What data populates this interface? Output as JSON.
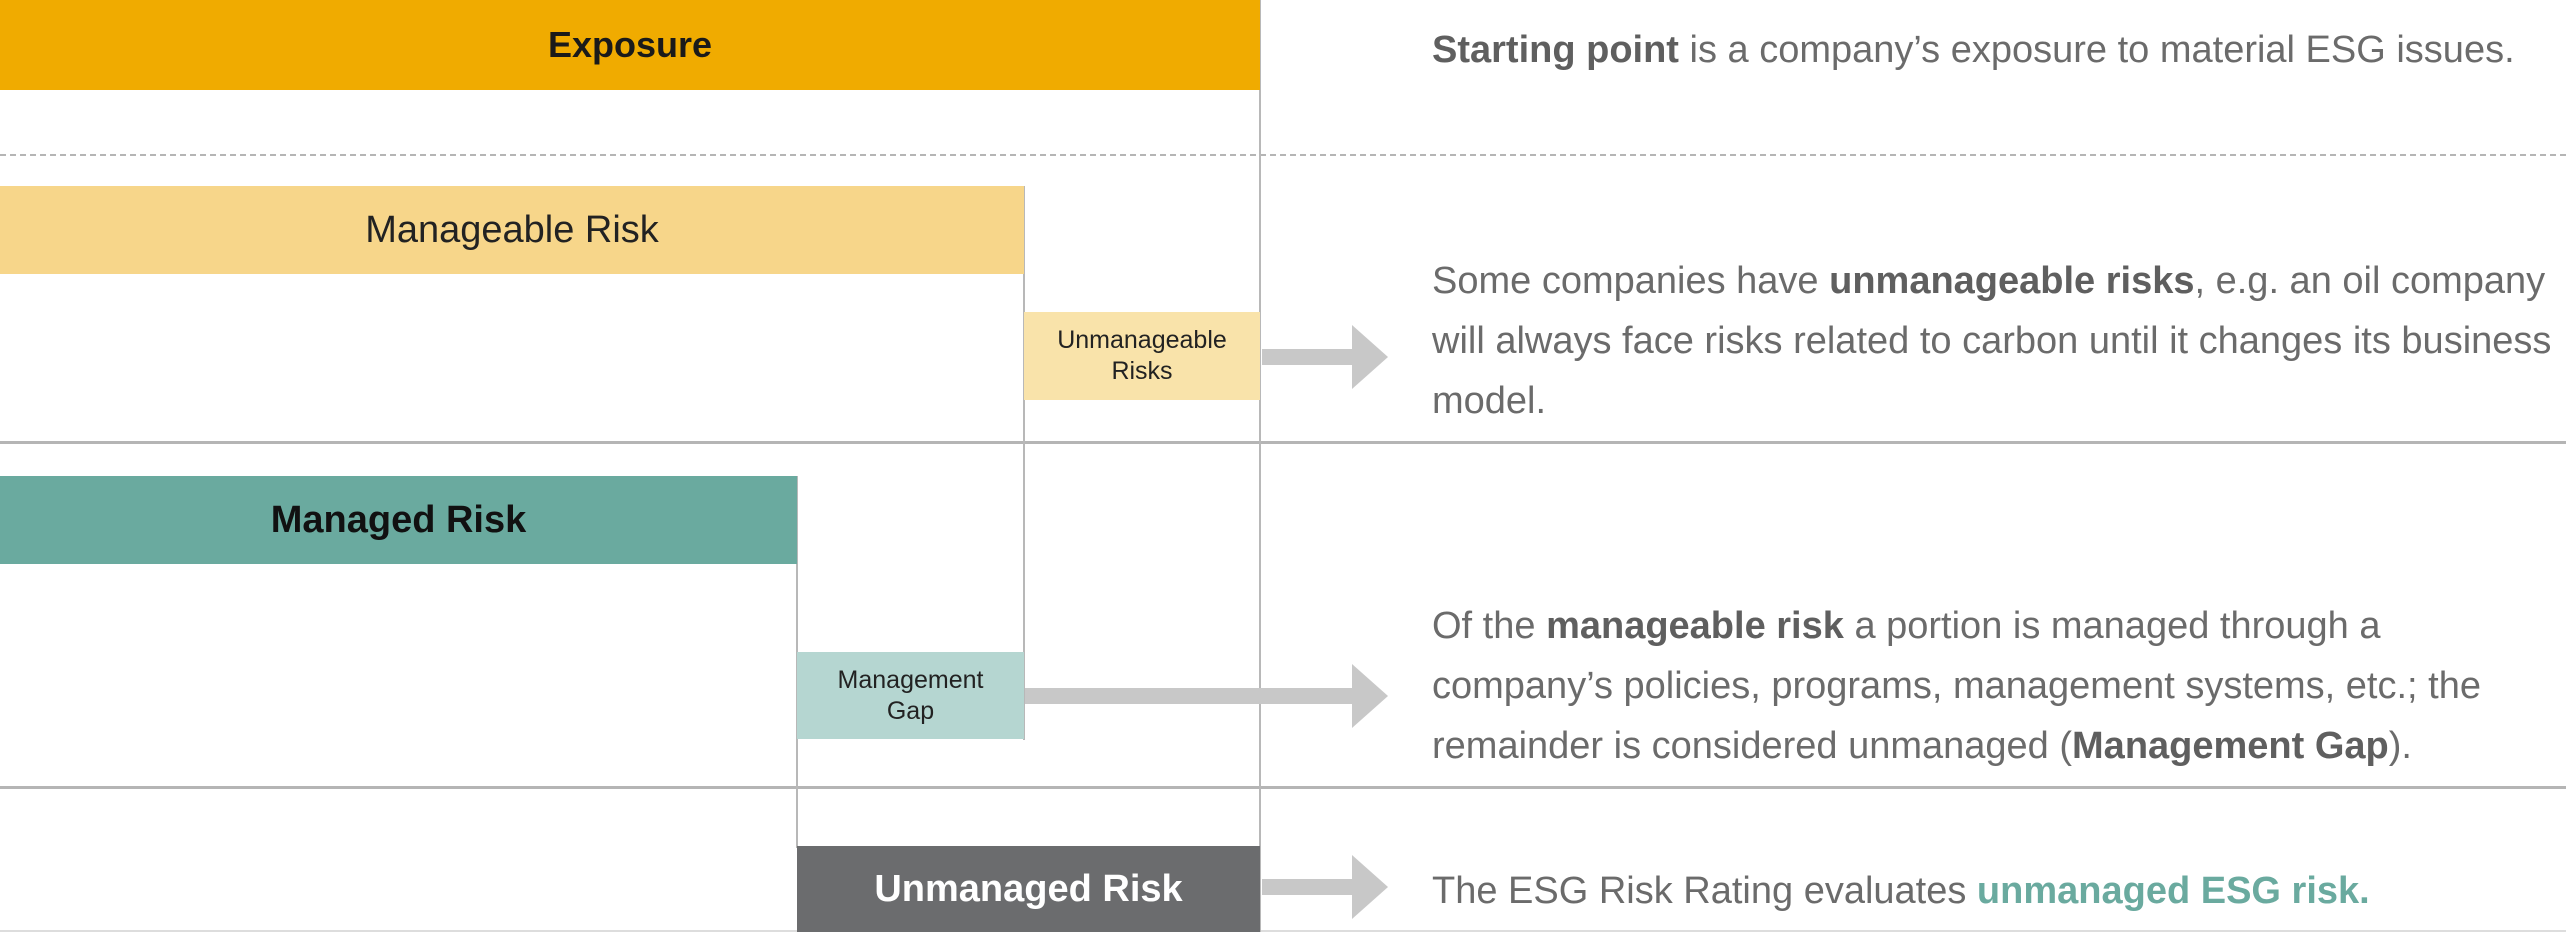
{
  "colors": {
    "exposure": "#f0ab00",
    "manageable": "#f7d68a",
    "unmanageable": "#f9e3aa",
    "managed": "#6aaa9f",
    "gap": "#b5d6d1",
    "unmanaged": "#6b6c6e",
    "arrow": "#c8c8c8",
    "text": "#6b6b6b",
    "highlight": "#6aaa9f"
  },
  "bars": {
    "exposure": "Exposure",
    "manageable_risk": "Manageable Risk",
    "unmanageable_risks": "Unmanageable Risks",
    "managed_risk": "Managed Risk",
    "management_gap": "Management Gap",
    "unmanaged_risk": "Unmanaged Risk"
  },
  "descriptions": {
    "exposure": {
      "bold": "Starting point",
      "rest": " is a company’s exposure to material ESG issues."
    },
    "unmanageable": {
      "pre": "Some companies have ",
      "bold": "unmanageable risks",
      "post": ", e.g. an oil company will always face risks related to carbon until it changes its business model."
    },
    "management_gap": {
      "pre": "Of the ",
      "bold1": "manageable risk",
      "mid": " a portion is managed through a company’s policies, programs, management systems, etc.; the remainder is considered unmanaged (",
      "bold2": "Management Gap",
      "post": ")."
    },
    "rating": {
      "pre": "The ESG Risk Rating evaluates ",
      "highlight": "unmanaged ESG risk",
      "post": "."
    }
  }
}
